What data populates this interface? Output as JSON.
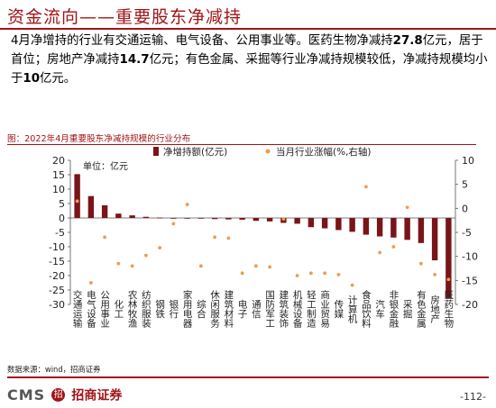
{
  "header": {
    "title": "资金流向——重要股东净减持"
  },
  "summary": {
    "p1": "4月净增持的行业有交通运输、电气设备、公用事业等。医药生物净减持",
    "v1": "27.8",
    "p2": "亿元，居于首位；房地产净减持",
    "v2": "14.7",
    "p3": "亿元；有色金属、采掘等行业净减持规模较低，净减持规模均小于",
    "v3": "10",
    "p4": "亿元。"
  },
  "chart_caption": "图：2022年4月重要股东净减持规模的行业分布",
  "source_text": "数据来源：wind，招商证券",
  "footer": {
    "logo_text": "CMS",
    "logo_badge": "招",
    "company": "招商证券",
    "page": "-112-"
  },
  "colors": {
    "brand": "#a01418",
    "bars": "#7a1418",
    "points": "#f09b4e"
  },
  "chart_data": {
    "type": "bar",
    "unit_label": "单位：亿元",
    "categories": [
      "交通运输",
      "电气设备",
      "公用事业",
      "化工",
      "农林牧渔",
      "纺织服装",
      "钢铁",
      "银行",
      "家用电器",
      "综合",
      "休闲服务",
      "建筑材料",
      "电子",
      "通信",
      "国防军工",
      "建筑装饰",
      "机械设备",
      "轻工制造",
      "商业贸易",
      "传媒",
      "计算机",
      "食品饮料",
      "汽车",
      "非银金融",
      "采掘",
      "有色金属",
      "房地产",
      "医药生物"
    ],
    "series": [
      {
        "name": "净增持额(亿元)",
        "kind": "bar",
        "axis": "left",
        "values": [
          15.2,
          7.6,
          4.4,
          1.5,
          0.9,
          0.4,
          0.1,
          -0.2,
          -0.2,
          -0.2,
          -0.4,
          -0.5,
          -0.6,
          -1.0,
          -1.2,
          -1.7,
          -2.0,
          -3.2,
          -3.6,
          -4.2,
          -4.8,
          -5.8,
          -6.4,
          -6.8,
          -7.6,
          -8.7,
          -14.7,
          -27.8
        ]
      },
      {
        "name": "当月行业涨幅(%,右轴)",
        "kind": "scatter",
        "axis": "right",
        "values": [
          1.5,
          -15.5,
          -6.0,
          -11.5,
          -12.0,
          -9.8,
          -8.2,
          -3.2,
          0.8,
          -12.0,
          -6.0,
          -6.2,
          -13.5,
          -12.0,
          -12.2,
          -2.2,
          -14.0,
          -13.5,
          -13.5,
          -13.8,
          -16.0,
          4.5,
          -9.2,
          -8.0,
          0.2,
          -11.5,
          -13.8,
          -14.8
        ]
      }
    ],
    "ylim_left": [
      -30,
      20
    ],
    "yticks_left": [
      20,
      15,
      10,
      5,
      0,
      -5,
      -10,
      -15,
      -20,
      -25,
      -30
    ],
    "ylim_right": [
      -20,
      10
    ],
    "yticks_right": [
      10,
      5,
      0,
      -5,
      -10,
      -15,
      -20
    ],
    "grid": false,
    "legend": "top"
  }
}
